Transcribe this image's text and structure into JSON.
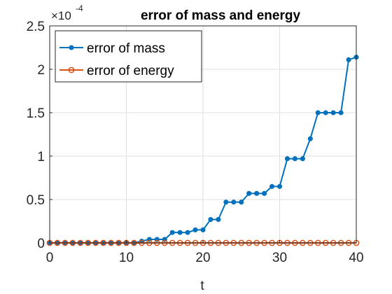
{
  "chart_data": {
    "type": "line",
    "title": "error of mass and energy",
    "xlabel": "t",
    "ylabel": "",
    "y_multiplier": "×10",
    "y_exponent": "-4",
    "xlim": [
      0,
      40
    ],
    "ylim": [
      0,
      2.5
    ],
    "xticks": [
      0,
      10,
      20,
      30,
      40
    ],
    "xtick_labels": [
      "0",
      "10",
      "20",
      "30",
      "40"
    ],
    "yticks": [
      0,
      0.5,
      1,
      1.5,
      2,
      2.5
    ],
    "ytick_labels": [
      "0",
      "0.5",
      "1",
      "1.5",
      "2",
      "2.5"
    ],
    "grid": true,
    "legend_position": "top-left",
    "x": [
      0,
      1,
      2,
      3,
      4,
      5,
      6,
      7,
      8,
      9,
      10,
      11,
      12,
      13,
      14,
      15,
      16,
      17,
      18,
      19,
      20,
      21,
      22,
      23,
      24,
      25,
      26,
      27,
      28,
      29,
      30,
      31,
      32,
      33,
      34,
      35,
      36,
      37,
      38,
      39,
      40
    ],
    "series": [
      {
        "name": "error of mass",
        "color": "#0072BD",
        "marker": "filled-circle",
        "values": [
          0,
          0,
          0,
          0,
          0,
          0,
          0,
          0,
          0,
          0,
          0,
          0,
          0.02,
          0.04,
          0.04,
          0.04,
          0.12,
          0.12,
          0.12,
          0.15,
          0.15,
          0.27,
          0.27,
          0.47,
          0.47,
          0.47,
          0.57,
          0.57,
          0.57,
          0.65,
          0.65,
          0.97,
          0.97,
          0.97,
          1.2,
          1.5,
          1.5,
          1.5,
          1.5,
          2.11,
          2.14
        ]
      },
      {
        "name": "error of energy",
        "color": "#D95319",
        "marker": "open-circle",
        "values": [
          0,
          0,
          0,
          0,
          0,
          0,
          0,
          0,
          0,
          0,
          0,
          0,
          0,
          0,
          0,
          0,
          0,
          0,
          0,
          0,
          0,
          0,
          0,
          0,
          0,
          0,
          0,
          0,
          0,
          0,
          0,
          0,
          0,
          0,
          0,
          0,
          0,
          0,
          0,
          0,
          0
        ]
      }
    ]
  }
}
